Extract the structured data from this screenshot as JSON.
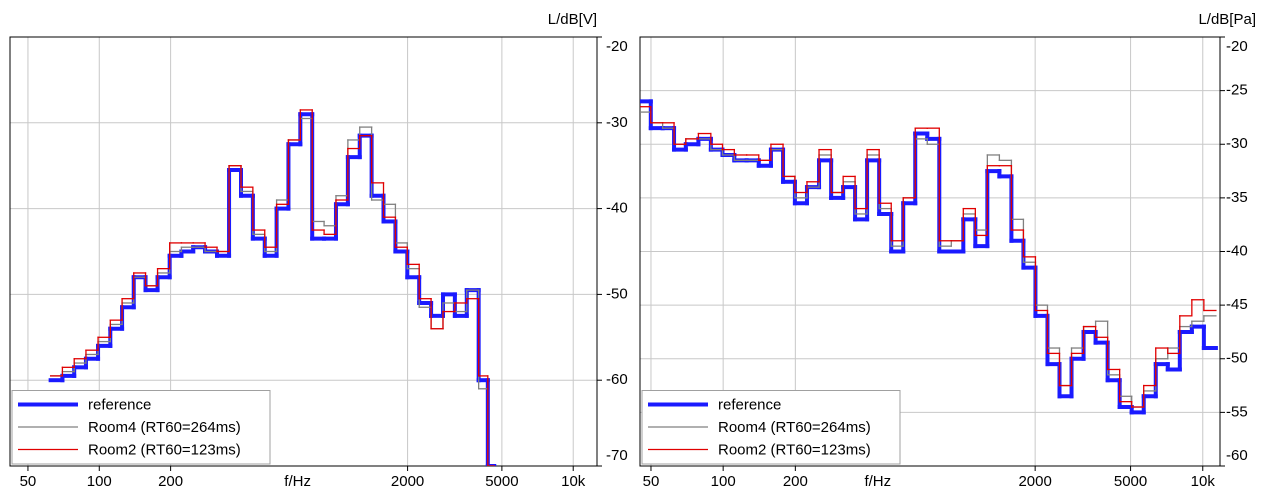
{
  "chart_data": [
    {
      "type": "line",
      "drawstyle": "steps-mid",
      "xscale": "log",
      "grid": true,
      "legend": "lower left",
      "ylabel": "L/dB[V]",
      "xlabel": "f/Hz",
      "xlim": [
        42,
        12600
      ],
      "ylim": [
        -70,
        -20
      ],
      "xticks": [
        50,
        100,
        200,
        2000,
        5000,
        {
          "value": 10000,
          "label": "10k"
        }
      ],
      "yticks": [
        -20,
        -30,
        -40,
        -50,
        -60,
        -70
      ],
      "x": [
        66,
        74,
        83,
        93,
        105,
        118,
        132,
        148,
        166,
        187,
        210,
        235,
        264,
        296,
        333,
        374,
        420,
        471,
        529,
        593,
        666,
        747,
        839,
        941,
        1057,
        1186,
        1331,
        1494,
        1677,
        1883,
        2113,
        2372,
        2663,
        2989,
        3355,
        3766,
        4227,
        4500
      ],
      "series": [
        {
          "name": "reference",
          "color": "#1a1aff",
          "values": [
            -60,
            -59.5,
            -58.5,
            -57.5,
            -56,
            -54,
            -51.5,
            -48,
            -49.5,
            -48,
            -45.5,
            -45,
            -44.5,
            -45,
            -45.5,
            -35.5,
            -38.5,
            -43.5,
            -45.5,
            -40,
            -32.5,
            -29,
            -43.5,
            -43.5,
            -39.5,
            -34,
            -31.5,
            -38.5,
            -41.5,
            -45,
            -48,
            -51,
            -52.5,
            -50,
            -52.5,
            -49.5,
            -60,
            -70
          ]
        },
        {
          "name": "Room4 (RT60=264ms)",
          "color": "#808080",
          "values": [
            -59.5,
            -59,
            -58,
            -57,
            -55.5,
            -53.5,
            -51,
            -48,
            -49,
            -47.5,
            -45,
            -44.5,
            -44.5,
            -45,
            -45,
            -35,
            -38,
            -43,
            -45,
            -39,
            -32,
            -29.5,
            -41.5,
            -42,
            -38.5,
            -32,
            -30.5,
            -39,
            -39.5,
            -44,
            -47,
            -51.5,
            -54,
            -51,
            -52,
            -49.5,
            -61,
            -70
          ]
        },
        {
          "name": "Room2 (RT60=123ms)",
          "color": "#e00000",
          "values": [
            -59.5,
            -58.5,
            -57.5,
            -56.5,
            -55,
            -53,
            -50.5,
            -47.5,
            -49,
            -47,
            -44,
            -44,
            -44,
            -44.5,
            -45,
            -35,
            -37.5,
            -42.5,
            -44.5,
            -39.5,
            -32,
            -28.5,
            -42.5,
            -43,
            -39,
            -33,
            -31.5,
            -37,
            -41,
            -44.5,
            -46.5,
            -50.5,
            -54,
            -52,
            -51,
            -50.5,
            -59.5,
            -70
          ]
        }
      ]
    },
    {
      "type": "line",
      "drawstyle": "steps-mid",
      "xscale": "log",
      "grid": true,
      "legend": "lower left",
      "ylabel": "L/dB[Pa]",
      "xlabel": "f/Hz",
      "xlim": [
        45,
        11800
      ],
      "ylim": [
        -60,
        -20
      ],
      "xticks": [
        50,
        100,
        200,
        2000,
        5000,
        {
          "value": 10000,
          "label": "10k"
        }
      ],
      "yticks": [
        -20,
        -25,
        -30,
        -35,
        -40,
        -45,
        -50,
        -55,
        -60
      ],
      "x": [
        47,
        53,
        59,
        66,
        74,
        84,
        94,
        105,
        118,
        133,
        149,
        168,
        188,
        211,
        237,
        266,
        299,
        335,
        376,
        422,
        474,
        532,
        597,
        670,
        752,
        844,
        947,
        1063,
        1193,
        1339,
        1503,
        1687,
        1893,
        2125,
        2385,
        2677,
        3005,
        3373,
        3786,
        4250,
        4770,
        5354,
        6010,
        6746,
        7572,
        8499,
        9540,
        10708
      ],
      "series": [
        {
          "name": "reference",
          "color": "#1a1aff",
          "values": [
            -26,
            -28.5,
            -28.5,
            -30.5,
            -30,
            -29.5,
            -30.5,
            -31,
            -31.5,
            -31.5,
            -32,
            -30.5,
            -33.5,
            -35.5,
            -34,
            -31.5,
            -35,
            -34,
            -37,
            -31.5,
            -36.5,
            -40,
            -35.5,
            -29,
            -29.5,
            -40,
            -40,
            -37,
            -39.5,
            -32.5,
            -33,
            -39,
            -41.5,
            -46,
            -50.5,
            -53.5,
            -50,
            -47.5,
            -48.5,
            -52,
            -54.5,
            -55,
            -53.5,
            -50.5,
            -51,
            -47.5,
            -47,
            -49
          ]
        },
        {
          "name": "Room4 (RT60=264ms)",
          "color": "#808080",
          "values": [
            -27,
            -28,
            -28.5,
            -30,
            -29.5,
            -29.5,
            -30.5,
            -31,
            -31.5,
            -31.5,
            -31.5,
            -30.5,
            -33,
            -35,
            -34,
            -31,
            -34.5,
            -33.5,
            -36.5,
            -31,
            -36,
            -39.5,
            -35,
            -29.5,
            -30,
            -39.5,
            -39,
            -36.5,
            -38,
            -31,
            -31.5,
            -37,
            -41,
            -45,
            -49,
            -52.5,
            -49,
            -47,
            -46.5,
            -51.5,
            -53.5,
            -54.5,
            -53,
            -50,
            -49,
            -47,
            -46.5,
            -46
          ]
        },
        {
          "name": "Room2 (RT60=123ms)",
          "color": "#e00000",
          "values": [
            -26.5,
            -28,
            -28,
            -30,
            -29.5,
            -29,
            -30,
            -30.5,
            -31,
            -31,
            -31.5,
            -30,
            -33,
            -34.5,
            -33.5,
            -30.5,
            -34.5,
            -33,
            -36,
            -30.5,
            -35.5,
            -39,
            -35,
            -28.5,
            -28.5,
            -39,
            -39,
            -36,
            -38.5,
            -32,
            -32,
            -38,
            -40.5,
            -45.5,
            -49.5,
            -52.5,
            -49.5,
            -47,
            -48,
            -51,
            -54,
            -54.5,
            -52.5,
            -49,
            -49.5,
            -46,
            -44.5,
            -45.5
          ]
        }
      ]
    }
  ]
}
